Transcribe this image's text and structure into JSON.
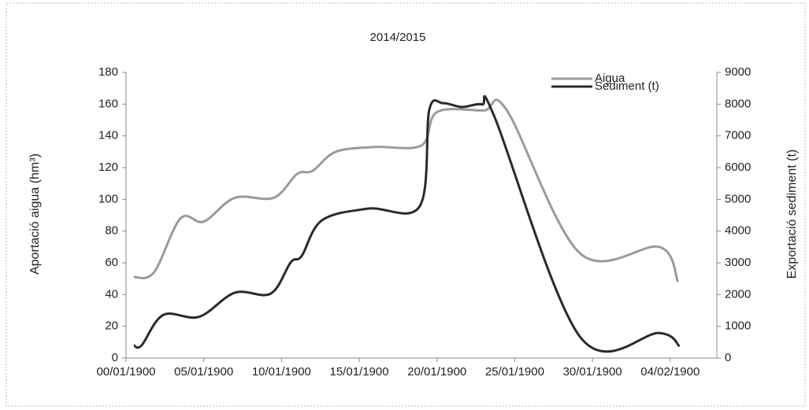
{
  "chart_data": {
    "type": "line",
    "title": "2014/2015",
    "y_label": "Aportació aigua (hm³)",
    "y2_label": "Exportació sediment  (t)",
    "xlim": [
      0,
      38
    ],
    "xticks": [
      {
        "value": 0,
        "label": "00/01/1900"
      },
      {
        "value": 5,
        "label": "05/01/1900"
      },
      {
        "value": 10,
        "label": "10/01/1900"
      },
      {
        "value": 15,
        "label": "15/01/1900"
      },
      {
        "value": 20,
        "label": "20/01/1900"
      },
      {
        "value": 25,
        "label": "25/01/1900"
      },
      {
        "value": 30,
        "label": "30/01/1900"
      },
      {
        "value": 35,
        "label": "04/02/1900"
      }
    ],
    "ylim": [
      0,
      180
    ],
    "yticks": [
      0,
      20,
      40,
      60,
      80,
      100,
      120,
      140,
      160,
      180
    ],
    "y2lim": [
      0,
      9000
    ],
    "y2ticks": [
      0,
      1000,
      2000,
      3000,
      4000,
      5000,
      6000,
      7000,
      8000,
      9000
    ],
    "legend": "upper right",
    "series": [
      {
        "name": "Aigua",
        "color": "#9a9a9a",
        "x": [
          0.5,
          1.8,
          3.5,
          5,
          7,
          9.5,
          11,
          12,
          13.5,
          16,
          19,
          20,
          23,
          24.5,
          29.2,
          34.3,
          35.5
        ],
        "values": [
          51,
          54,
          88,
          86,
          101,
          101,
          116,
          118,
          130,
          133,
          134,
          155,
          156,
          156,
          66,
          70,
          48
        ]
      },
      {
        "name": "Sediment (t)",
        "color": "#2a2a2a",
        "axis": "y2",
        "x": [
          0.5,
          1,
          2.4,
          4.7,
          7,
          9.3,
          10.6,
          11.3,
          12.6,
          15.6,
          18.9,
          19.5,
          20.4,
          21.6,
          22.9,
          23.7,
          29.2,
          34.3,
          35.6
        ],
        "values": [
          400,
          400,
          1360,
          1300,
          2060,
          2030,
          3020,
          3220,
          4340,
          4710,
          4790,
          7810,
          8030,
          7910,
          7990,
          7600,
          670,
          790,
          370
        ]
      }
    ]
  }
}
